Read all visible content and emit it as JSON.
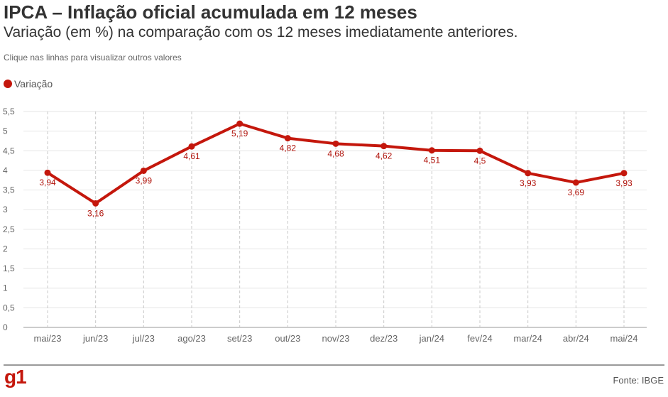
{
  "header": {
    "title": "IPCA – Inflação oficial acumulada em 12 meses",
    "subtitle": "Variação (em %) na comparação com os 12 meses imediatamente anteriores.",
    "hint": "Clique nas linhas para visualizar outros valores"
  },
  "footer": {
    "logo": "g1",
    "source": "Fonte: IBGE"
  },
  "colors": {
    "series": "#c4170c",
    "label": "#b0120a",
    "grid": "#e6e6e6",
    "vertical_grid": "#c8c8c8"
  },
  "chart_data": {
    "type": "line",
    "title": "IPCA – Inflação oficial acumulada em 12 meses",
    "subtitle": "Variação (em %) na comparação com os 12 meses imediatamente anteriores.",
    "xlabel": "",
    "ylabel": "",
    "categories": [
      "mai/23",
      "jun/23",
      "jul/23",
      "ago/23",
      "set/23",
      "out/23",
      "nov/23",
      "dez/23",
      "jan/24",
      "fev/24",
      "mar/24",
      "abr/24",
      "mai/24"
    ],
    "series": [
      {
        "name": "Variação",
        "values": [
          3.94,
          3.16,
          3.99,
          4.61,
          5.19,
          4.82,
          4.68,
          4.62,
          4.51,
          4.5,
          3.93,
          3.69,
          3.93
        ],
        "labels": [
          "3,94",
          "3,16",
          "3,99",
          "4,61",
          "5,19",
          "4,82",
          "4,68",
          "4,62",
          "4,51",
          "4,5",
          "3,93",
          "3,69",
          "3,93"
        ]
      }
    ],
    "ylim": [
      0,
      5.5
    ],
    "yticks": [
      0,
      0.5,
      1,
      1.5,
      2,
      2.5,
      3,
      3.5,
      4,
      4.5,
      5,
      5.5
    ],
    "ytick_labels": [
      "0",
      "0,5",
      "1",
      "1,5",
      "2",
      "2,5",
      "3",
      "3,5",
      "4",
      "4,5",
      "5",
      "5,5"
    ],
    "grid": true,
    "legend": "top-left"
  }
}
